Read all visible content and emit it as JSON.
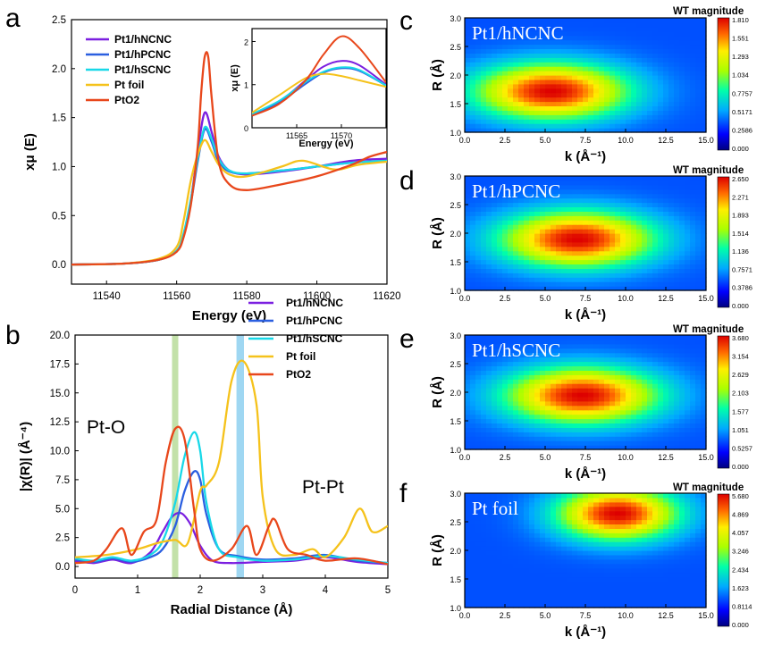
{
  "figure": {
    "panel_letters": [
      "a",
      "b",
      "c",
      "d",
      "e",
      "f"
    ]
  },
  "chart_data": [
    {
      "panel": "a",
      "type": "line",
      "xlabel": "Energy (eV)",
      "ylabel": "xμ (E)",
      "xlim": [
        11530,
        11620
      ],
      "ylim": [
        -0.2,
        2.5
      ],
      "x_ticks": [
        "11540",
        "11560",
        "11580",
        "11600",
        "11620"
      ],
      "y_ticks": [
        "0.0",
        "0.5",
        "1.0",
        "1.5",
        "2.0",
        "2.5"
      ],
      "legend_position": "top-left",
      "series": [
        {
          "name": "Pt1/hNCNC",
          "color": "#7b1fe0",
          "x": [
            11530,
            11545,
            11555,
            11560,
            11562,
            11564,
            11566,
            11568,
            11570,
            11572,
            11575,
            11580,
            11590,
            11600,
            11610,
            11620
          ],
          "y": [
            0.0,
            0.01,
            0.05,
            0.14,
            0.3,
            0.65,
            1.15,
            1.55,
            1.35,
            1.1,
            0.96,
            0.92,
            0.95,
            1.0,
            1.06,
            1.08
          ]
        },
        {
          "name": "Pt1/hPCNC",
          "color": "#2b5fe0",
          "x": [
            11530,
            11545,
            11555,
            11560,
            11562,
            11564,
            11566,
            11568,
            11570,
            11572,
            11575,
            11580,
            11590,
            11600,
            11610,
            11620
          ],
          "y": [
            0.0,
            0.01,
            0.05,
            0.14,
            0.3,
            0.62,
            1.05,
            1.38,
            1.25,
            1.05,
            0.95,
            0.93,
            0.96,
            1.0,
            1.04,
            1.06
          ]
        },
        {
          "name": "Pt1/hSCNC",
          "color": "#18d8e8",
          "x": [
            11530,
            11545,
            11555,
            11560,
            11562,
            11564,
            11566,
            11568,
            11570,
            11572,
            11575,
            11580,
            11590,
            11600,
            11610,
            11620
          ],
          "y": [
            0.0,
            0.01,
            0.05,
            0.14,
            0.32,
            0.66,
            1.08,
            1.4,
            1.28,
            1.08,
            0.96,
            0.93,
            0.96,
            1.0,
            1.04,
            1.06
          ]
        },
        {
          "name": "Pt foil",
          "color": "#f5c21b",
          "x": [
            11530,
            11545,
            11555,
            11560,
            11562,
            11564,
            11566,
            11568,
            11570,
            11572,
            11575,
            11580,
            11590,
            11596,
            11605,
            11612,
            11620
          ],
          "y": [
            0.0,
            0.01,
            0.06,
            0.18,
            0.45,
            0.85,
            1.12,
            1.27,
            1.15,
            1.02,
            0.92,
            0.9,
            1.0,
            1.06,
            0.97,
            1.02,
            1.05
          ]
        },
        {
          "name": "PtO2",
          "color": "#e8471b",
          "x": [
            11530,
            11545,
            11555,
            11560,
            11562,
            11564,
            11566,
            11567,
            11568,
            11569,
            11570,
            11572,
            11575,
            11580,
            11590,
            11600,
            11610,
            11615,
            11620
          ],
          "y": [
            0.0,
            0.01,
            0.05,
            0.13,
            0.28,
            0.6,
            1.2,
            1.75,
            2.12,
            2.12,
            1.7,
            1.05,
            0.82,
            0.76,
            0.82,
            0.9,
            1.02,
            1.1,
            1.15
          ]
        }
      ],
      "inset": {
        "xlabel": "Energy (eV)",
        "ylabel": "xμ (E)",
        "xlim": [
          11560,
          11575
        ],
        "ylim": [
          0,
          2.3
        ],
        "x_ticks": [
          "11565",
          "11570"
        ],
        "y_ticks": [
          "0",
          "1",
          "2"
        ],
        "series": [
          {
            "name": "Pt1/hNCNC",
            "color": "#7b1fe0",
            "x": [
              11560,
              11563,
              11566,
              11568,
              11570,
              11572,
              11575
            ],
            "y": [
              0.3,
              0.6,
              1.1,
              1.42,
              1.55,
              1.45,
              1.0
            ]
          },
          {
            "name": "Pt1/hPCNC",
            "color": "#2b5fe0",
            "x": [
              11560,
              11563,
              11566,
              11568,
              11570,
              11572,
              11575
            ],
            "y": [
              0.3,
              0.58,
              1.02,
              1.28,
              1.38,
              1.32,
              0.98
            ]
          },
          {
            "name": "Pt1/hSCNC",
            "color": "#18d8e8",
            "x": [
              11560,
              11563,
              11566,
              11568,
              11570,
              11572,
              11575
            ],
            "y": [
              0.32,
              0.62,
              1.06,
              1.3,
              1.4,
              1.34,
              0.98
            ]
          },
          {
            "name": "Pt foil",
            "color": "#f5c21b",
            "x": [
              11560,
              11563,
              11566,
              11568,
              11570,
              11572,
              11575
            ],
            "y": [
              0.35,
              0.75,
              1.15,
              1.25,
              1.2,
              1.1,
              0.95
            ]
          },
          {
            "name": "PtO2",
            "color": "#e8471b",
            "x": [
              11560,
              11563,
              11566,
              11568,
              11570,
              11572,
              11575
            ],
            "y": [
              0.28,
              0.55,
              1.1,
              1.7,
              2.12,
              1.85,
              1.05
            ]
          }
        ]
      }
    },
    {
      "panel": "b",
      "type": "line",
      "xlabel": "Radial Distance (Å)",
      "ylabel": "|χ(R)| (Å⁻⁴)",
      "xlim": [
        0,
        5
      ],
      "ylim": [
        -1,
        20
      ],
      "x_ticks": [
        "0",
        "1",
        "2",
        "3",
        "4",
        "5"
      ],
      "y_ticks": [
        "0.0",
        "2.5",
        "5.0",
        "7.5",
        "10.0",
        "12.5",
        "15.0",
        "17.5",
        "20.0"
      ],
      "highlight_bands": [
        {
          "x": [
            1.55,
            1.65
          ],
          "color": "#b9dc9a"
        },
        {
          "x": [
            2.58,
            2.7
          ],
          "color": "#8ed0f0"
        }
      ],
      "annotations": [
        "Pt-O",
        "Pt-Pt"
      ],
      "legend_position": "top-right",
      "series": [
        {
          "name": "Pt1/hNCNC",
          "color": "#7b1fe0",
          "x": [
            0,
            0.3,
            0.6,
            0.9,
            1.2,
            1.4,
            1.55,
            1.7,
            1.85,
            2.0,
            2.2,
            2.5,
            3.0,
            3.5,
            4.0,
            4.5,
            5.0
          ],
          "y": [
            0.5,
            0.3,
            0.6,
            0.3,
            1.2,
            3.0,
            4.3,
            4.6,
            3.6,
            1.8,
            0.5,
            0.3,
            0.4,
            0.5,
            0.8,
            0.4,
            0.2
          ]
        },
        {
          "name": "Pt1/hPCNC",
          "color": "#2b5fe0",
          "x": [
            0,
            0.3,
            0.6,
            0.9,
            1.2,
            1.4,
            1.6,
            1.75,
            1.9,
            2.0,
            2.1,
            2.3,
            2.6,
            3.0,
            3.5,
            4.0,
            4.5,
            5.0
          ],
          "y": [
            0.6,
            0.4,
            0.7,
            0.4,
            0.8,
            1.5,
            3.5,
            6.5,
            8.2,
            7.5,
            4.5,
            1.5,
            0.9,
            0.6,
            0.7,
            1.0,
            0.5,
            0.3
          ]
        },
        {
          "name": "Pt1/hSCNC",
          "color": "#18d8e8",
          "x": [
            0,
            0.3,
            0.6,
            0.9,
            1.2,
            1.4,
            1.6,
            1.75,
            1.9,
            2.0,
            2.1,
            2.3,
            2.6,
            3.0,
            3.5,
            4.0,
            4.5,
            5.0
          ],
          "y": [
            0.7,
            0.5,
            0.8,
            0.5,
            1.0,
            2.2,
            5.5,
            9.5,
            11.6,
            10.0,
            5.5,
            1.5,
            0.8,
            0.5,
            0.6,
            0.9,
            0.6,
            0.3
          ]
        },
        {
          "name": "Pt foil",
          "color": "#f5c21b",
          "x": [
            0,
            0.5,
            1.0,
            1.3,
            1.6,
            1.8,
            2.0,
            2.1,
            2.3,
            2.5,
            2.7,
            2.9,
            3.0,
            3.2,
            3.5,
            3.8,
            4.0,
            4.3,
            4.55,
            4.75,
            5.0
          ],
          "y": [
            0.8,
            1.0,
            1.5,
            2.0,
            2.3,
            2.0,
            6.5,
            7.0,
            9.0,
            16.0,
            17.7,
            14.0,
            6.0,
            1.5,
            1.0,
            1.5,
            0.8,
            2.5,
            5.0,
            3.0,
            3.5
          ]
        },
        {
          "name": "PtO2",
          "color": "#e8471b",
          "x": [
            0,
            0.3,
            0.5,
            0.75,
            0.9,
            1.1,
            1.3,
            1.45,
            1.6,
            1.75,
            1.9,
            2.0,
            2.2,
            2.5,
            2.75,
            2.9,
            3.1,
            3.2,
            3.4,
            3.7,
            4.0,
            4.5,
            5.0
          ],
          "y": [
            0.3,
            0.5,
            1.5,
            3.3,
            1.0,
            3.0,
            4.0,
            9.0,
            11.9,
            11.0,
            5.0,
            1.5,
            0.5,
            1.5,
            3.5,
            1.0,
            3.5,
            4.0,
            1.5,
            1.0,
            0.5,
            0.7,
            0.2
          ]
        }
      ]
    },
    {
      "panel": "c",
      "type": "heatmap",
      "title": "Pt1/hNCNC",
      "xlabel": "k (Å⁻¹)",
      "ylabel": "R (Å)",
      "xlim": [
        0,
        15
      ],
      "ylim": [
        1.0,
        3.0
      ],
      "x_ticks": [
        "0.0",
        "2.5",
        "5.0",
        "7.5",
        "10.0",
        "12.5",
        "15.0"
      ],
      "y_ticks": [
        "1.0",
        "1.5",
        "2.0",
        "2.5",
        "3.0"
      ],
      "colorbar_title": "WT magnitude",
      "colorbar_ticks": [
        "1.810",
        "1.551",
        "1.293",
        "1.034",
        "0.7757",
        "0.5171",
        "0.2586",
        "0.000"
      ],
      "peak": {
        "k": 5.4,
        "R": 1.72,
        "value": 1.81
      }
    },
    {
      "panel": "d",
      "type": "heatmap",
      "title": "Pt1/hPCNC",
      "xlabel": "k (Å⁻¹)",
      "ylabel": "R (Å)",
      "xlim": [
        0,
        15
      ],
      "ylim": [
        1.0,
        3.0
      ],
      "x_ticks": [
        "0.0",
        "2.5",
        "5.0",
        "7.5",
        "10.0",
        "12.5",
        "15.0"
      ],
      "y_ticks": [
        "1.0",
        "1.5",
        "2.0",
        "2.5",
        "3.0"
      ],
      "colorbar_title": "WT magnitude",
      "colorbar_ticks": [
        "2.650",
        "2.271",
        "1.893",
        "1.514",
        "1.136",
        "0.7571",
        "0.3786",
        "0.000"
      ],
      "peak": {
        "k": 7.0,
        "R": 1.9,
        "value": 2.65
      }
    },
    {
      "panel": "e",
      "type": "heatmap",
      "title": "Pt1/hSCNC",
      "xlabel": "k (Å⁻¹)",
      "ylabel": "R (Å)",
      "xlim": [
        0,
        15
      ],
      "ylim": [
        1.0,
        3.0
      ],
      "x_ticks": [
        "0.0",
        "2.5",
        "5.0",
        "7.5",
        "10.0",
        "12.5",
        "15.0"
      ],
      "y_ticks": [
        "1.0",
        "1.5",
        "2.0",
        "2.5",
        "3.0"
      ],
      "colorbar_title": "WT magnitude",
      "colorbar_ticks": [
        "3.680",
        "3.154",
        "2.629",
        "2.103",
        "1.577",
        "1.051",
        "0.5257",
        "0.000"
      ],
      "peak": {
        "k": 7.3,
        "R": 1.95,
        "value": 3.68
      }
    },
    {
      "panel": "f",
      "type": "heatmap",
      "title": "Pt foil",
      "xlabel": "k (Å⁻¹)",
      "ylabel": "R (Å)",
      "xlim": [
        0,
        15
      ],
      "ylim": [
        1.0,
        3.0
      ],
      "x_ticks": [
        "0.0",
        "2.5",
        "5.0",
        "7.5",
        "10.0",
        "12.5",
        "15.0"
      ],
      "y_ticks": [
        "1.0",
        "1.5",
        "2.0",
        "2.5",
        "3.0"
      ],
      "colorbar_title": "WT magnitude",
      "colorbar_ticks": [
        "5.680",
        "4.869",
        "4.057",
        "3.246",
        "2.434",
        "1.623",
        "0.8114",
        "0.000"
      ],
      "peak": {
        "k": 9.5,
        "R": 2.65,
        "value": 5.68
      }
    }
  ]
}
